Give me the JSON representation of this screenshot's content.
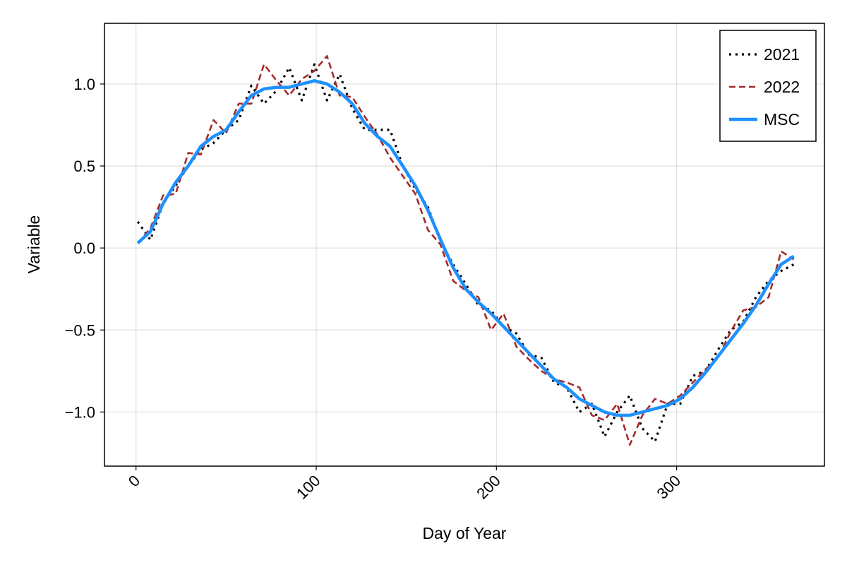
{
  "chart_data": {
    "type": "line",
    "title": "",
    "xlabel": "Day of Year",
    "ylabel": "Variable",
    "xlim": [
      -17.5,
      382
    ],
    "ylim": [
      -1.33,
      1.37
    ],
    "grid": true,
    "legend_position": "top-right",
    "x_ticks": [
      0,
      100,
      200,
      300
    ],
    "x_tick_labels": [
      "0",
      "100",
      "200",
      "300"
    ],
    "y_ticks": [
      1.0,
      0.5,
      0.0,
      -0.5,
      -1.0
    ],
    "y_tick_labels": [
      "1.0",
      "0.5",
      "0.0",
      "−0.5",
      "−1.0"
    ],
    "colors": {
      "y2021": "#000000",
      "y2022": "#a52a2a",
      "msc": "#1e90ff"
    },
    "x": [
      1,
      8,
      15,
      22,
      29,
      36,
      43,
      50,
      57,
      64,
      71,
      78,
      85,
      92,
      99,
      106,
      113,
      120,
      127,
      134,
      141,
      148,
      155,
      162,
      169,
      176,
      183,
      190,
      197,
      204,
      211,
      218,
      225,
      232,
      239,
      246,
      253,
      260,
      267,
      274,
      281,
      288,
      295,
      302,
      309,
      316,
      323,
      330,
      337,
      344,
      351,
      358,
      365
    ],
    "series": [
      {
        "name": "2021",
        "style": "dotted",
        "values": [
          0.16,
          0.05,
          0.27,
          0.38,
          0.5,
          0.6,
          0.64,
          0.72,
          0.78,
          0.99,
          0.88,
          0.96,
          1.1,
          0.9,
          1.12,
          0.9,
          1.06,
          0.85,
          0.72,
          0.72,
          0.72,
          0.5,
          0.36,
          0.25,
          0.04,
          -0.1,
          -0.22,
          -0.35,
          -0.38,
          -0.48,
          -0.52,
          -0.65,
          -0.67,
          -0.82,
          -0.85,
          -1.0,
          -0.95,
          -1.15,
          -1.0,
          -0.9,
          -1.1,
          -1.18,
          -0.95,
          -0.95,
          -0.78,
          -0.75,
          -0.62,
          -0.5,
          -0.45,
          -0.3,
          -0.2,
          -0.14,
          -0.1
        ]
      },
      {
        "name": "2022",
        "style": "dashed",
        "values": [
          0.03,
          0.12,
          0.32,
          0.33,
          0.58,
          0.57,
          0.78,
          0.7,
          0.88,
          0.88,
          1.12,
          1.02,
          0.93,
          1.03,
          1.08,
          1.17,
          0.93,
          0.92,
          0.8,
          0.69,
          0.55,
          0.44,
          0.33,
          0.11,
          0.02,
          -0.2,
          -0.26,
          -0.3,
          -0.5,
          -0.4,
          -0.6,
          -0.68,
          -0.75,
          -0.8,
          -0.82,
          -0.85,
          -1.02,
          -1.05,
          -0.95,
          -1.2,
          -1.02,
          -0.92,
          -0.95,
          -0.9,
          -0.82,
          -0.74,
          -0.67,
          -0.51,
          -0.38,
          -0.36,
          -0.3,
          -0.02,
          -0.07
        ]
      },
      {
        "name": "MSC",
        "style": "solid",
        "values": [
          0.03,
          0.1,
          0.27,
          0.4,
          0.5,
          0.62,
          0.68,
          0.72,
          0.83,
          0.93,
          0.97,
          0.98,
          0.98,
          1.0,
          1.02,
          1.0,
          0.95,
          0.88,
          0.76,
          0.68,
          0.62,
          0.5,
          0.38,
          0.23,
          0.05,
          -0.12,
          -0.25,
          -0.33,
          -0.4,
          -0.48,
          -0.56,
          -0.64,
          -0.72,
          -0.8,
          -0.85,
          -0.92,
          -0.96,
          -1.0,
          -1.02,
          -1.02,
          -1.0,
          -0.98,
          -0.96,
          -0.92,
          -0.85,
          -0.76,
          -0.66,
          -0.56,
          -0.46,
          -0.35,
          -0.22,
          -0.1,
          -0.05
        ]
      }
    ]
  }
}
